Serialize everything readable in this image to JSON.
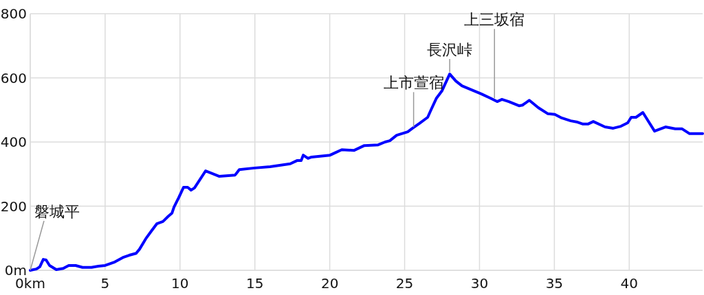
{
  "chart_data": {
    "type": "line",
    "x": [
      0,
      0.41,
      0.64,
      0.87,
      1.06,
      1.29,
      1.74,
      2.2,
      2.57,
      3.03,
      3.49,
      4.09,
      4.55,
      5.0,
      5.65,
      6.24,
      6.61,
      7.07,
      7.3,
      7.71,
      8.08,
      8.45,
      8.86,
      9.23,
      9.46,
      9.6,
      9.92,
      10.24,
      10.51,
      10.74,
      10.97,
      11.71,
      12.63,
      13.68,
      13.96,
      14.97,
      16.02,
      17.36,
      17.81,
      18.09,
      18.23,
      18.55,
      18.78,
      20.02,
      20.34,
      20.8,
      21.63,
      22.31,
      23.23,
      23.69,
      24.01,
      24.47,
      25.21,
      25.53,
      25.99,
      26.54,
      26.77,
      27.13,
      27.5,
      28.01,
      28.42,
      28.83,
      30.12,
      30.72,
      31.18,
      31.5,
      31.96,
      32.64,
      32.87,
      33.33,
      33.93,
      34.57,
      35.03,
      35.49,
      36.09,
      36.55,
      36.91,
      37.24,
      37.6,
      38.38,
      38.93,
      39.44,
      39.9,
      40.13,
      40.45,
      40.91,
      41.69,
      42.42,
      43.07,
      43.53,
      44.03,
      44.9
    ],
    "series": [
      {
        "color": "#0000ff",
        "values": [
          0,
          4,
          11,
          34,
          32,
          15,
          2,
          6,
          15,
          15,
          9,
          9,
          13,
          15,
          26,
          41,
          47,
          53,
          66,
          98,
          122,
          145,
          152,
          169,
          178,
          197,
          227,
          259,
          259,
          250,
          257,
          310,
          293,
          297,
          314,
          319,
          323,
          332,
          342,
          342,
          359,
          349,
          353,
          359,
          366,
          376,
          374,
          389,
          391,
          400,
          404,
          421,
          432,
          443,
          458,
          477,
          501,
          537,
          560,
          612,
          590,
          575,
          550,
          537,
          526,
          533,
          526,
          513,
          515,
          530,
          507,
          488,
          486,
          475,
          466,
          462,
          456,
          456,
          464,
          447,
          443,
          449,
          460,
          477,
          477,
          492,
          434,
          447,
          441,
          441,
          426,
          426
        ]
      }
    ],
    "xlim": [
      0,
      44.9
    ],
    "xticks": [
      {
        "value": 0,
        "label": "0km"
      },
      5,
      10,
      15,
      20,
      25,
      30,
      35,
      40
    ],
    "ylim": [
      0,
      800
    ],
    "yticks": [
      {
        "value": 0,
        "label": "0m"
      },
      200,
      400,
      600,
      800
    ],
    "grid": true,
    "marker": "none",
    "line_style": "solid",
    "annotations": [
      {
        "text": "磐城平",
        "x": 0,
        "y": 0
      },
      {
        "text": "上市萱宿",
        "x": 25.6,
        "y": 440
      },
      {
        "text": "長沢峠",
        "x": 28.01,
        "y": 612
      },
      {
        "text": "上三坂宿",
        "x": 31.0,
        "y": 530
      }
    ]
  }
}
